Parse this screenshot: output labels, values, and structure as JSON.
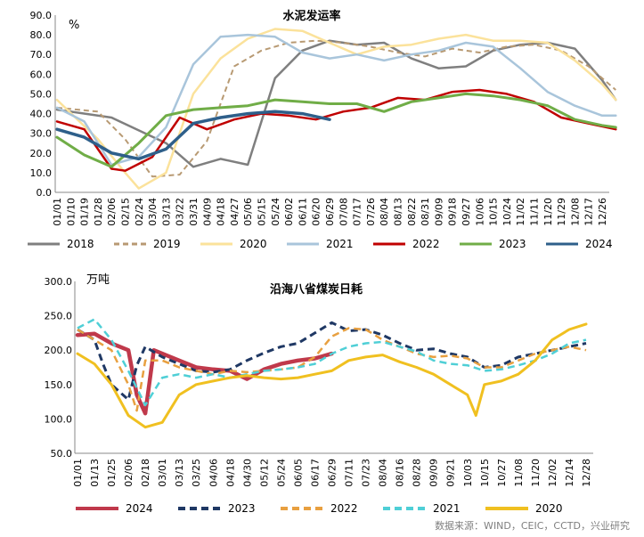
{
  "chart_data": [
    {
      "type": "line",
      "title": "水泥发运率",
      "ylabel": "%",
      "ylim": [
        0,
        90
      ],
      "yticks": [
        "0.0",
        "10.0",
        "20.0",
        "30.0",
        "40.0",
        "50.0",
        "60.0",
        "70.0",
        "80.0",
        "90.0"
      ],
      "x_ticks": [
        "01/01",
        "01/10",
        "01/19",
        "01/28",
        "02/06",
        "02/15",
        "02/24",
        "03/04",
        "03/13",
        "03/22",
        "03/31",
        "04/09",
        "04/18",
        "04/27",
        "05/06",
        "05/15",
        "05/24",
        "06/02",
        "06/11",
        "06/20",
        "06/29",
        "07/08",
        "07/17",
        "07/26",
        "08/04",
        "08/13",
        "08/22",
        "08/31",
        "09/09",
        "09/18",
        "09/27",
        "10/06",
        "10/15",
        "10/24",
        "11/02",
        "11/11",
        "11/20",
        "11/29",
        "12/08",
        "12/17",
        "12/26"
      ],
      "legend_position": "bottom",
      "series": [
        {
          "name": "2018",
          "color": "#7f7f7f",
          "style": "solid",
          "x": [
            0,
            4,
            8,
            10,
            12,
            14,
            16,
            18,
            20,
            22,
            24,
            26,
            28,
            30,
            32,
            34,
            36,
            38,
            40,
            41
          ],
          "values": [
            42,
            38,
            25,
            13,
            17,
            14,
            58,
            72,
            77,
            75,
            76,
            68,
            63,
            64,
            72,
            75,
            76,
            73,
            57,
            47
          ]
        },
        {
          "name": "2019",
          "color": "#b89a73",
          "style": "dashed",
          "x": [
            0,
            3,
            5,
            7,
            9,
            11,
            13,
            15,
            17,
            19,
            21,
            23,
            25,
            27,
            29,
            31,
            33,
            35,
            37,
            39,
            41
          ],
          "values": [
            43,
            41,
            27,
            8,
            9,
            26,
            64,
            72,
            76,
            77,
            76,
            74,
            71,
            69,
            73,
            71,
            74,
            75,
            72,
            64,
            52
          ]
        },
        {
          "name": "2020",
          "color": "#fbe29b",
          "style": "solid",
          "x": [
            0,
            3,
            5,
            6,
            8,
            10,
            12,
            14,
            16,
            18,
            20,
            22,
            24,
            26,
            28,
            30,
            32,
            34,
            36,
            38,
            40,
            41
          ],
          "values": [
            47,
            27,
            10,
            2,
            10,
            50,
            68,
            78,
            83,
            82,
            76,
            70,
            74,
            75,
            78,
            80,
            77,
            77,
            76,
            67,
            55,
            47
          ]
        },
        {
          "name": "2021",
          "color": "#a9c5db",
          "style": "solid",
          "x": [
            0,
            2,
            4,
            6,
            8,
            10,
            12,
            14,
            16,
            18,
            20,
            22,
            24,
            26,
            28,
            30,
            32,
            34,
            36,
            38,
            40,
            41
          ],
          "values": [
            43,
            36,
            14,
            18,
            33,
            65,
            79,
            80,
            79,
            71,
            68,
            70,
            67,
            70,
            72,
            76,
            74,
            63,
            51,
            44,
            39,
            39
          ]
        },
        {
          "name": "2022",
          "color": "#c00000",
          "style": "solid",
          "x": [
            0,
            2,
            4,
            5,
            7,
            9,
            11,
            13,
            15,
            17,
            19,
            21,
            23,
            25,
            27,
            29,
            31,
            33,
            35,
            37,
            39,
            41
          ],
          "values": [
            36,
            32,
            12,
            11,
            18,
            38,
            32,
            37,
            40,
            39,
            37,
            41,
            43,
            48,
            47,
            51,
            52,
            50,
            46,
            38,
            35,
            32
          ]
        },
        {
          "name": "2023",
          "color": "#70ad47",
          "style": "solid",
          "x": [
            0,
            2,
            4,
            6,
            8,
            10,
            12,
            14,
            16,
            18,
            20,
            22,
            24,
            26,
            28,
            30,
            32,
            34,
            36,
            38,
            40,
            41
          ],
          "values": [
            28,
            19,
            13,
            25,
            39,
            42,
            43,
            44,
            47,
            46,
            45,
            45,
            41,
            46,
            48,
            50,
            49,
            47,
            44,
            37,
            34,
            33
          ]
        },
        {
          "name": "2024",
          "color": "#2e5f8a",
          "style": "solid",
          "x": [
            0,
            2,
            4,
            6,
            8,
            10,
            12,
            14,
            16,
            18,
            20
          ],
          "values": [
            32,
            28,
            20,
            17,
            22,
            35,
            38,
            40,
            41,
            40,
            37
          ]
        }
      ]
    },
    {
      "type": "line",
      "title": "沿海八省煤炭日耗",
      "ylabel": "万吨",
      "ylim": [
        50,
        300
      ],
      "yticks": [
        "50.0",
        "100.0",
        "150.0",
        "200.0",
        "250.0",
        "300.0"
      ],
      "x_ticks": [
        "01/01",
        "01/13",
        "01/25",
        "02/06",
        "02/18",
        "03/01",
        "03/13",
        "03/25",
        "04/06",
        "04/18",
        "04/30",
        "05/12",
        "05/24",
        "06/05",
        "06/17",
        "06/29",
        "07/11",
        "07/23",
        "08/04",
        "08/16",
        "08/28",
        "09/09",
        "09/21",
        "10/03",
        "10/15",
        "10/27",
        "11/08",
        "11/20",
        "12/02",
        "12/14",
        "12/28"
      ],
      "legend_position": "bottom",
      "series": [
        {
          "name": "2024",
          "color": "#c0394b",
          "style": "solid",
          "x": [
            0,
            1,
            2,
            3,
            3.5,
            4,
            4.5,
            5,
            6,
            7,
            8,
            9,
            10,
            11,
            12,
            13,
            14,
            15
          ],
          "values": [
            222,
            224,
            210,
            200,
            135,
            108,
            200,
            195,
            185,
            175,
            172,
            170,
            158,
            172,
            180,
            185,
            188,
            195
          ]
        },
        {
          "name": "2023",
          "color": "#1f3864",
          "style": "dashed",
          "x": [
            0,
            1,
            1.5,
            2,
            3,
            3.5,
            4,
            5,
            6,
            7,
            8,
            9,
            10,
            11,
            12,
            13,
            14,
            15,
            16,
            17,
            18,
            19,
            20,
            21,
            22,
            23,
            24,
            25,
            26,
            27,
            28,
            29,
            30
          ],
          "values": [
            230,
            215,
            180,
            150,
            128,
            178,
            205,
            190,
            180,
            170,
            168,
            172,
            185,
            196,
            205,
            210,
            225,
            240,
            228,
            230,
            222,
            210,
            200,
            202,
            195,
            190,
            175,
            178,
            190,
            195,
            200,
            205,
            210
          ]
        },
        {
          "name": "2022",
          "color": "#e8a040",
          "style": "dashed",
          "x": [
            0,
            1,
            2,
            3,
            3.5,
            4,
            5,
            6,
            7,
            8,
            9,
            10,
            11,
            12,
            13,
            14,
            15,
            16,
            17,
            18,
            19,
            20,
            21,
            22,
            23,
            24,
            25,
            26,
            27,
            28,
            29,
            30
          ],
          "values": [
            230,
            215,
            200,
            150,
            112,
            185,
            185,
            175,
            170,
            165,
            170,
            168,
            170,
            172,
            175,
            190,
            220,
            232,
            230,
            215,
            205,
            195,
            190,
            192,
            188,
            175,
            175,
            185,
            195,
            200,
            205,
            200
          ]
        },
        {
          "name": "2021",
          "color": "#4fcfd6",
          "style": "dashed",
          "x": [
            0,
            1,
            2,
            3,
            4,
            5,
            6,
            7,
            8,
            9,
            10,
            11,
            12,
            13,
            14,
            15,
            16,
            17,
            18,
            19,
            20,
            21,
            22,
            23,
            24,
            25,
            26,
            27,
            28,
            29,
            30
          ],
          "values": [
            232,
            245,
            215,
            170,
            120,
            160,
            165,
            160,
            165,
            160,
            165,
            170,
            172,
            175,
            180,
            195,
            205,
            210,
            212,
            205,
            198,
            185,
            180,
            178,
            170,
            172,
            178,
            185,
            195,
            210,
            215
          ]
        },
        {
          "name": "2020",
          "color": "#f0c020",
          "style": "solid",
          "x": [
            0,
            1,
            2,
            3,
            4,
            5,
            6,
            7,
            8,
            9,
            10,
            11,
            12,
            13,
            14,
            15,
            16,
            17,
            18,
            19,
            20,
            21,
            22,
            23,
            23.5,
            24,
            25,
            26,
            27,
            28,
            29,
            30
          ],
          "values": [
            195,
            180,
            150,
            105,
            88,
            95,
            135,
            150,
            155,
            160,
            163,
            160,
            158,
            160,
            165,
            170,
            185,
            190,
            193,
            183,
            175,
            165,
            150,
            135,
            105,
            150,
            155,
            165,
            185,
            215,
            230,
            238
          ]
        }
      ],
      "source": "数据来源：WIND，CEIC，CCTD，兴业研究"
    }
  ]
}
